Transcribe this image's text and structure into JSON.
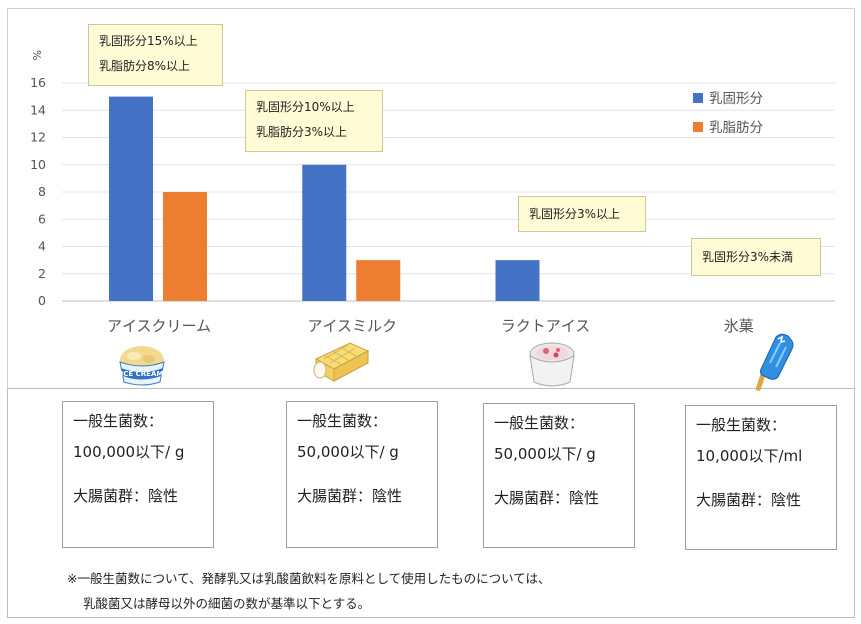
{
  "chart_data": {
    "type": "bar",
    "unit_label": "%",
    "ylim": [
      0,
      16
    ],
    "yticks": [
      0,
      2,
      4,
      6,
      8,
      10,
      12,
      14,
      16
    ],
    "grid": true,
    "legend_position": "top-right",
    "categories": [
      "アイスクリーム",
      "アイスミルク",
      "ラクトアイス",
      "氷菓"
    ],
    "series": [
      {
        "name": "乳固形分",
        "color": "#4472c4",
        "values": [
          15,
          10,
          3,
          null
        ]
      },
      {
        "name": "乳脂肪分",
        "color": "#ed7d31",
        "values": [
          8,
          3,
          null,
          null
        ]
      }
    ],
    "annotations": [
      {
        "lines": [
          "乳固形分15%以上",
          "乳脂肪分8%以上"
        ]
      },
      {
        "lines": [
          "乳固形分10%以上",
          "乳脂肪分3%以上"
        ]
      },
      {
        "lines": [
          "乳固形分3%以上"
        ]
      },
      {
        "lines": [
          "乳固形分3%未満"
        ]
      }
    ]
  },
  "icons": [
    "ice-cream-cup-icon",
    "ice-milk-wafer-icon",
    "lacto-ice-cup-icon",
    "ice-pop-icon"
  ],
  "standards": [
    {
      "line1": "一般生菌数：",
      "line2": "100,000以下/ g",
      "line3": "大腸菌群：陰性"
    },
    {
      "line1": "一般生菌数：",
      "line2": "50,000以下/ g",
      "line3": "大腸菌群：陰性"
    },
    {
      "line1": "一般生菌数：",
      "line2": "50,000以下/ g",
      "line3": "大腸菌群：陰性"
    },
    {
      "line1": "一般生菌数：",
      "line2": "10,000以下/ml",
      "line3": "大腸菌群：陰性"
    }
  ],
  "footnote": {
    "line1": "※一般生菌数について、発酵乳又は乳酸菌飲料を原料として使用したものについては、",
    "line2": "乳酸菌又は酵母以外の細菌の数が基準以下とする。"
  }
}
